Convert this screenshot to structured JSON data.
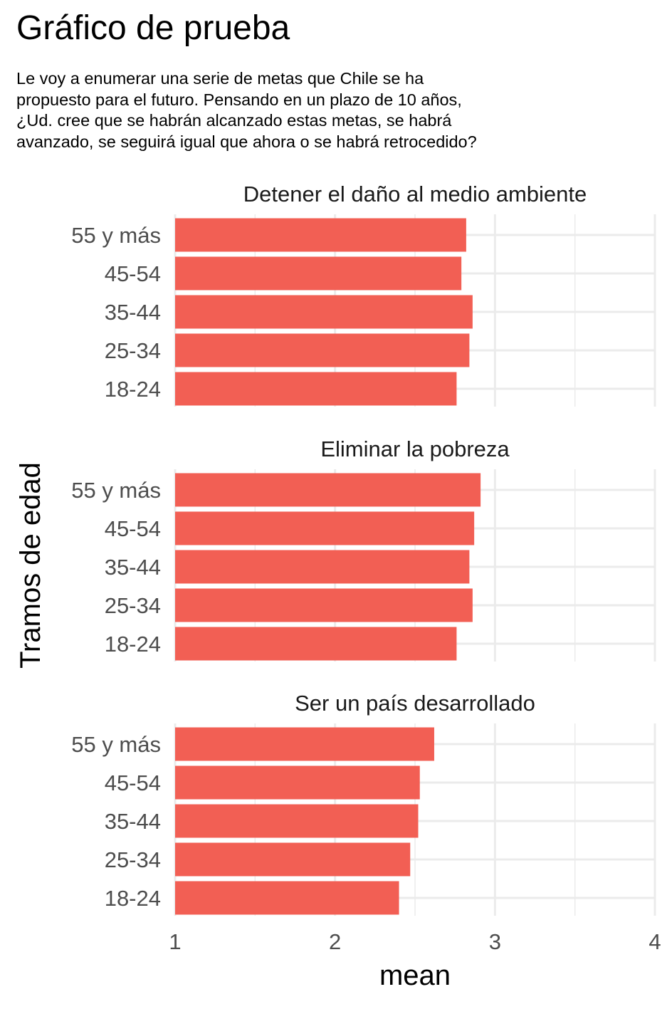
{
  "chart_data": {
    "type": "bar",
    "orientation": "horizontal",
    "title": "Gráfico de prueba",
    "subtitle": [
      "Le voy a enumerar una serie de metas que Chile se ha",
      "propuesto para el futuro. Pensando en un plazo de 10 años,",
      "¿Ud. cree que se habrán alcanzado estas metas, se habrá",
      "avanzado, se seguirá igual que ahora o se habrá retrocedido?"
    ],
    "xlabel": "mean",
    "ylabel": "Tramos de edad",
    "xlim": [
      1,
      4
    ],
    "xticks": [
      "1",
      "2",
      "3",
      "4"
    ],
    "grid": true,
    "legend": "none",
    "bar_color": "#F25F54",
    "grid_color": "#EBEBEB",
    "categories": [
      "55 y más",
      "45-54",
      "35-44",
      "25-34",
      "18-24"
    ],
    "facets": [
      {
        "title": "Detener el daño al medio ambiente",
        "values": [
          2.82,
          2.79,
          2.86,
          2.84,
          2.76
        ]
      },
      {
        "title": "Eliminar la pobreza",
        "values": [
          2.91,
          2.87,
          2.84,
          2.86,
          2.76
        ]
      },
      {
        "title": "Ser un país desarrollado",
        "values": [
          2.62,
          2.53,
          2.52,
          2.47,
          2.4
        ]
      }
    ]
  }
}
